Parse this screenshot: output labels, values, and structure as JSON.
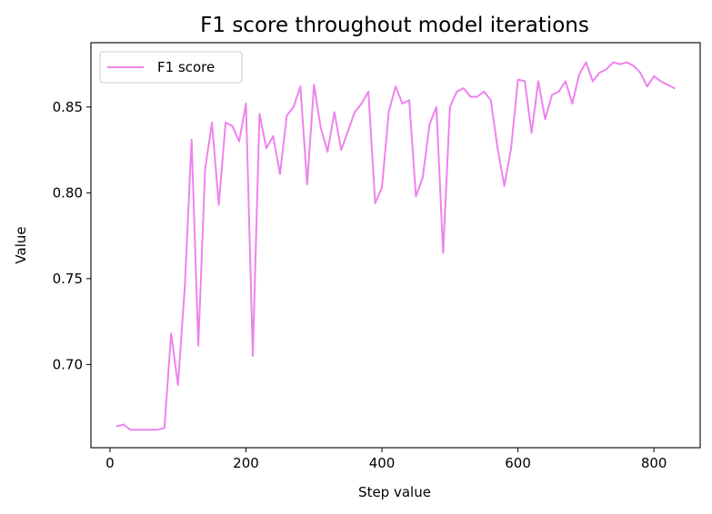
{
  "chart_data": {
    "type": "line",
    "title": "F1 score throughout model iterations",
    "xlabel": "Step value",
    "ylabel": "Value",
    "xlim": [
      -28,
      868
    ],
    "ylim": [
      0.6515,
      0.8875
    ],
    "xticks": [
      0,
      200,
      400,
      600,
      800
    ],
    "yticks": [
      0.7,
      0.75,
      0.8,
      0.85
    ],
    "xtick_labels": [
      "0",
      "200",
      "400",
      "600",
      "800"
    ],
    "ytick_labels": [
      "0.70",
      "0.75",
      "0.80",
      "0.85"
    ],
    "grid": false,
    "legend": "top-left",
    "series": [
      {
        "name": "F1 score",
        "color": "#ee82ee",
        "x": [
          10,
          20,
          30,
          40,
          50,
          60,
          70,
          80,
          90,
          100,
          110,
          120,
          130,
          140,
          150,
          160,
          170,
          180,
          190,
          200,
          210,
          220,
          230,
          240,
          250,
          260,
          270,
          280,
          290,
          300,
          310,
          320,
          330,
          340,
          350,
          360,
          370,
          380,
          390,
          400,
          410,
          420,
          430,
          440,
          450,
          460,
          470,
          480,
          490,
          500,
          510,
          520,
          530,
          540,
          550,
          560,
          570,
          580,
          590,
          600,
          610,
          620,
          630,
          640,
          650,
          660,
          670,
          680,
          690,
          700,
          710,
          720,
          730,
          740,
          750,
          760,
          770,
          780,
          790,
          800,
          810,
          820,
          830
        ],
        "y": [
          0.664,
          0.665,
          0.662,
          0.662,
          0.662,
          0.662,
          0.662,
          0.663,
          0.718,
          0.688,
          0.745,
          0.831,
          0.711,
          0.814,
          0.841,
          0.793,
          0.841,
          0.839,
          0.83,
          0.852,
          0.705,
          0.846,
          0.826,
          0.833,
          0.811,
          0.845,
          0.85,
          0.862,
          0.805,
          0.863,
          0.838,
          0.824,
          0.847,
          0.825,
          0.836,
          0.847,
          0.852,
          0.859,
          0.794,
          0.803,
          0.847,
          0.862,
          0.852,
          0.854,
          0.798,
          0.809,
          0.84,
          0.85,
          0.765,
          0.85,
          0.859,
          0.861,
          0.856,
          0.856,
          0.859,
          0.854,
          0.826,
          0.804,
          0.826,
          0.866,
          0.865,
          0.835,
          0.865,
          0.843,
          0.857,
          0.859,
          0.865,
          0.852,
          0.869,
          0.876,
          0.865,
          0.87,
          0.872,
          0.876,
          0.875,
          0.876,
          0.874,
          0.87,
          0.862,
          0.868,
          0.865,
          0.863,
          0.861
        ]
      }
    ]
  }
}
